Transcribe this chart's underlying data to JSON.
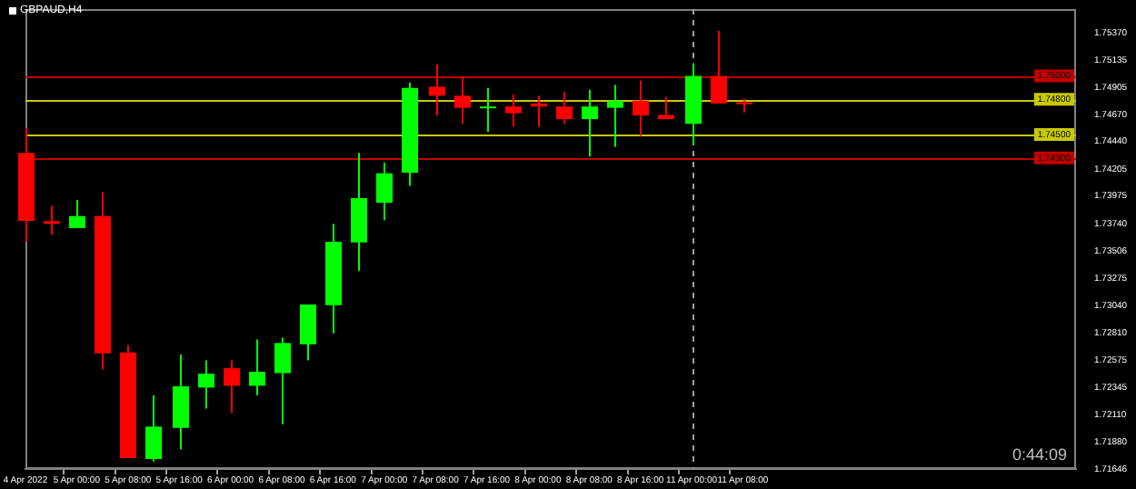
{
  "chart_data": {
    "type": "candlestick",
    "title": "GBPAUD,H4",
    "categories": [
      "4 Apr 2022",
      null,
      "5 Apr 00:00",
      null,
      "5 Apr 08:00",
      null,
      "5 Apr 16:00",
      null,
      "6 Apr 00:00",
      null,
      "6 Apr 08:00",
      null,
      "6 Apr 16:00",
      null,
      "7 Apr 00:00",
      null,
      "7 Apr 08:00",
      null,
      "7 Apr 16:00",
      null,
      "8 Apr 00:00",
      null,
      "8 Apr 08:00",
      null,
      "8 Apr 16:00",
      null,
      "11 Apr 00:00",
      null,
      "11 Apr 08:00",
      null,
      null,
      null,
      null,
      null,
      null,
      null,
      null,
      null,
      null,
      null,
      null,
      null
    ],
    "ohlc": [
      [
        1.74343,
        1.74554,
        1.73584,
        1.73764
      ],
      [
        1.73761,
        1.73892,
        1.73645,
        1.73738
      ],
      [
        1.73702,
        1.73942,
        1.73702,
        1.73804
      ],
      [
        1.73804,
        1.7401,
        1.72495,
        1.72633
      ],
      [
        1.7264,
        1.72701,
        1.7174,
        1.7174
      ],
      [
        1.71731,
        1.72275,
        1.7171,
        1.72008
      ],
      [
        1.71997,
        1.72624,
        1.71813,
        1.72352
      ],
      [
        1.72341,
        1.72572,
        1.72162,
        1.72459
      ],
      [
        1.72506,
        1.72572,
        1.72125,
        1.72356
      ],
      [
        1.72356,
        1.72752,
        1.72275,
        1.72475
      ],
      [
        1.72464,
        1.72767,
        1.72028,
        1.72721
      ],
      [
        1.7271,
        1.73049,
        1.72572,
        1.73049
      ],
      [
        1.73044,
        1.73738,
        1.72803,
        1.73584
      ],
      [
        1.73579,
        1.74343,
        1.73337,
        1.73958
      ],
      [
        1.73918,
        1.74261,
        1.73768,
        1.74169
      ],
      [
        1.74174,
        1.74943,
        1.74061,
        1.74897
      ],
      [
        1.74908,
        1.75097,
        1.74662,
        1.74831
      ],
      [
        1.74831,
        1.74996,
        1.7459,
        1.74728
      ],
      [
        1.74728,
        1.74897,
        1.74523,
        1.74739
      ],
      [
        1.74739,
        1.74842,
        1.74565,
        1.74682
      ],
      [
        1.74765,
        1.74831,
        1.74565,
        1.74739
      ],
      [
        1.74739,
        1.74862,
        1.7459,
        1.74631
      ],
      [
        1.74631,
        1.74882,
        1.74312,
        1.74739
      ],
      [
        1.74728,
        1.74923,
        1.74395,
        1.74789
      ],
      [
        1.74789,
        1.74959,
        1.74488,
        1.74662
      ],
      [
        1.74667,
        1.7482,
        1.74631,
        1.74631
      ],
      [
        1.7459,
        1.75108,
        1.74411,
        1.75
      ],
      [
        1.75,
        1.75385,
        1.74765,
        1.74765
      ],
      [
        1.74774,
        1.74805,
        1.74688,
        1.74759
      ],
      null,
      null,
      null,
      null,
      null,
      null,
      null,
      null,
      null,
      null,
      null,
      null,
      null
    ],
    "colors": [
      "#ff0000",
      "#ff0000",
      "#00ff00",
      "#ff0000",
      "#ff0000",
      "#00ff00",
      "#00ff00",
      "#00ff00",
      "#ff0000",
      "#00ff00",
      "#00ff00",
      "#00ff00",
      "#00ff00",
      "#00ff00",
      "#00ff00",
      "#00ff00",
      "#ff0000",
      "#ff0000",
      "#00ff00",
      "#ff0000",
      "#ff0000",
      "#ff0000",
      "#00ff00",
      "#00ff00",
      "#ff0000",
      "#ff0000",
      "#00ff00",
      "#ff0000",
      "#ff0000",
      null,
      null,
      null,
      null,
      null,
      null,
      null,
      null,
      null,
      null,
      null,
      null,
      null
    ],
    "ylim": [
      1.71646,
      1.7557
    ],
    "yticks": [
      {
        "value": 1.7537,
        "label": "1.75370"
      },
      {
        "value": 1.75135,
        "label": "1.75135"
      },
      {
        "value": 1.74905,
        "label": "1.74905"
      },
      {
        "value": 1.7467,
        "label": "1.74670"
      },
      {
        "value": 1.7444,
        "label": "1.74440"
      },
      {
        "value": 1.74205,
        "label": "1.74205"
      },
      {
        "value": 1.73975,
        "label": "1.73975"
      },
      {
        "value": 1.7374,
        "label": "1.73740"
      },
      {
        "value": 1.73506,
        "label": "1.73506"
      },
      {
        "value": 1.73275,
        "label": "1.73275"
      },
      {
        "value": 1.7304,
        "label": "1.73040"
      },
      {
        "value": 1.7281,
        "label": "1.72810"
      },
      {
        "value": 1.72575,
        "label": "1.72575"
      },
      {
        "value": 1.72345,
        "label": "1.72345"
      },
      {
        "value": 1.7211,
        "label": "1.72110"
      },
      {
        "value": 1.7188,
        "label": "1.71880"
      },
      {
        "value": 1.71646,
        "label": "1.71646"
      }
    ],
    "ref_lines": [
      {
        "axis": "y",
        "value": 1.75,
        "label": "1.75000",
        "color": "#c00000",
        "line_style": "solid"
      },
      {
        "axis": "y",
        "value": 1.748,
        "label": "1.74800",
        "color": "#c8c800",
        "line_style": "solid"
      },
      {
        "axis": "y",
        "value": 1.745,
        "label": "1.74500",
        "color": "#c8c800",
        "line_style": "solid"
      },
      {
        "axis": "y",
        "value": 1.743,
        "label": "1.74300",
        "color": "#c00000",
        "line_style": "solid"
      },
      {
        "axis": "x",
        "value": "11 Apr 00:00",
        "color": "#a0a0a0",
        "line_style": "dashed"
      }
    ],
    "annotations": [
      "0:44:09"
    ]
  }
}
